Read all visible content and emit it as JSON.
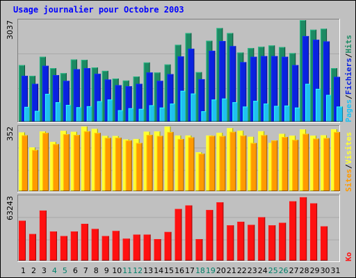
{
  "title": "Usage journalier pour Octobre 2003",
  "colors": {
    "hits": "#1d8a63",
    "files": "#0a22e0",
    "pages": "#20c0f0",
    "visits": "#ffff30",
    "sites": "#ff9a00",
    "kb": "#ff1010",
    "weekday_label": "#000000",
    "weekend_label": "#00806a"
  },
  "chart_data": [
    {
      "type": "bar",
      "panel": "hits-files-pages",
      "ymax_label": "3037",
      "ylim": [
        0,
        3037
      ],
      "side_labels": [
        {
          "text": "Pages",
          "color": "#20c0f0"
        },
        {
          "text": "/",
          "color": "#000000"
        },
        {
          "text": "Fichiers",
          "color": "#0a22e0"
        },
        {
          "text": "/",
          "color": "#000000"
        },
        {
          "text": "Hits",
          "color": "#1d8a63"
        }
      ],
      "categories": [
        "1",
        "2",
        "3",
        "4",
        "5",
        "6",
        "7",
        "8",
        "9",
        "10",
        "11",
        "12",
        "13",
        "14",
        "15",
        "16",
        "17",
        "18",
        "19",
        "20",
        "21",
        "22",
        "23",
        "24",
        "25",
        "26",
        "27",
        "28",
        "29",
        "30",
        "31"
      ],
      "series": [
        {
          "name": "Hits",
          "color": "#1d8a63",
          "values": [
            1690,
            1370,
            1940,
            1600,
            1450,
            1860,
            1850,
            1620,
            1520,
            1290,
            1230,
            1350,
            1770,
            1470,
            1710,
            2300,
            2650,
            1480,
            2420,
            2800,
            2650,
            2070,
            2200,
            2240,
            2280,
            2230,
            2050,
            3037,
            2750,
            2780,
            1600
          ]
        },
        {
          "name": "Fichiers",
          "color": "#0a22e0",
          "values": [
            1370,
            1130,
            1670,
            1390,
            1220,
            1570,
            1600,
            1430,
            1260,
            1090,
            1060,
            1130,
            1470,
            1220,
            1420,
            1950,
            2180,
            1270,
            2120,
            2410,
            2260,
            1780,
            1940,
            1960,
            1960,
            1940,
            1690,
            2560,
            2450,
            2400,
            1340
          ]
        },
        {
          "name": "Pages",
          "color": "#20c0f0",
          "values": [
            440,
            320,
            830,
            580,
            500,
            430,
            460,
            610,
            660,
            340,
            400,
            380,
            490,
            420,
            540,
            920,
            840,
            310,
            660,
            690,
            580,
            450,
            620,
            540,
            470,
            480,
            420,
            1130,
            980,
            800,
            450
          ]
        }
      ]
    },
    {
      "type": "bar",
      "panel": "visits-sites",
      "ymax_label": "352",
      "ylim": [
        0,
        352
      ],
      "side_labels": [
        {
          "text": "Sites",
          "color": "#ff9a00"
        },
        {
          "text": "/",
          "color": "#000000"
        },
        {
          "text": "Visites",
          "color": "#ffff30"
        }
      ],
      "categories": [
        "1",
        "2",
        "3",
        "4",
        "5",
        "6",
        "7",
        "8",
        "9",
        "10",
        "11",
        "12",
        "13",
        "14",
        "15",
        "16",
        "17",
        "18",
        "19",
        "20",
        "21",
        "22",
        "23",
        "24",
        "25",
        "26",
        "27",
        "28",
        "29",
        "30",
        "31"
      ],
      "series": [
        {
          "name": "Visites",
          "color": "#ffff30",
          "values": [
            320,
            238,
            325,
            268,
            328,
            323,
            352,
            339,
            301,
            300,
            282,
            284,
            324,
            325,
            352,
            303,
            303,
            212,
            303,
            318,
            343,
            329,
            296,
            326,
            263,
            312,
            302,
            336,
            302,
            304,
            337
          ]
        },
        {
          "name": "Sites",
          "color": "#ff9a00",
          "values": [
            304,
            224,
            317,
            256,
            310,
            306,
            326,
            317,
            290,
            291,
            276,
            262,
            306,
            301,
            322,
            284,
            293,
            204,
            301,
            300,
            323,
            303,
            262,
            305,
            276,
            295,
            279,
            312,
            286,
            289,
            322
          ]
        }
      ]
    },
    {
      "type": "bar",
      "panel": "kb",
      "ymax_label": "63243",
      "ylim": [
        0,
        63243
      ],
      "side_labels": [
        {
          "text": "Ko",
          "color": "#ff1010"
        }
      ],
      "categories": [
        "1",
        "2",
        "3",
        "4",
        "5",
        "6",
        "7",
        "8",
        "9",
        "10",
        "11",
        "12",
        "13",
        "14",
        "15",
        "16",
        "17",
        "18",
        "19",
        "20",
        "21",
        "22",
        "23",
        "24",
        "25",
        "26",
        "27",
        "28",
        "29",
        "30",
        "31"
      ],
      "series": [
        {
          "name": "Ko",
          "color": "#ff1010",
          "values": [
            39000,
            26000,
            49000,
            28500,
            24000,
            28500,
            36000,
            31000,
            24000,
            29000,
            21500,
            25500,
            25500,
            21000,
            28000,
            50500,
            54000,
            21000,
            49500,
            57000,
            34500,
            38000,
            35000,
            42500,
            34500,
            37000,
            58000,
            62000,
            56000,
            33500,
            0
          ]
        }
      ]
    }
  ],
  "x_labels": [
    {
      "text": "1",
      "weekend": false
    },
    {
      "text": "2",
      "weekend": false
    },
    {
      "text": "3",
      "weekend": false
    },
    {
      "text": "4",
      "weekend": true
    },
    {
      "text": "5",
      "weekend": true
    },
    {
      "text": "6",
      "weekend": false
    },
    {
      "text": "7",
      "weekend": false
    },
    {
      "text": "8",
      "weekend": false
    },
    {
      "text": "9",
      "weekend": false
    },
    {
      "text": "10",
      "weekend": false
    },
    {
      "text": "11",
      "weekend": true
    },
    {
      "text": "12",
      "weekend": true
    },
    {
      "text": "13",
      "weekend": false
    },
    {
      "text": "14",
      "weekend": false
    },
    {
      "text": "15",
      "weekend": false
    },
    {
      "text": "16",
      "weekend": false
    },
    {
      "text": "17",
      "weekend": false
    },
    {
      "text": "18",
      "weekend": true
    },
    {
      "text": "19",
      "weekend": true
    },
    {
      "text": "20",
      "weekend": false
    },
    {
      "text": "21",
      "weekend": false
    },
    {
      "text": "22",
      "weekend": false
    },
    {
      "text": "23",
      "weekend": false
    },
    {
      "text": "24",
      "weekend": false
    },
    {
      "text": "25",
      "weekend": true
    },
    {
      "text": "26",
      "weekend": true
    },
    {
      "text": "27",
      "weekend": false
    },
    {
      "text": "28",
      "weekend": false
    },
    {
      "text": "29",
      "weekend": false
    },
    {
      "text": "30",
      "weekend": false
    },
    {
      "text": "31",
      "weekend": false
    }
  ]
}
